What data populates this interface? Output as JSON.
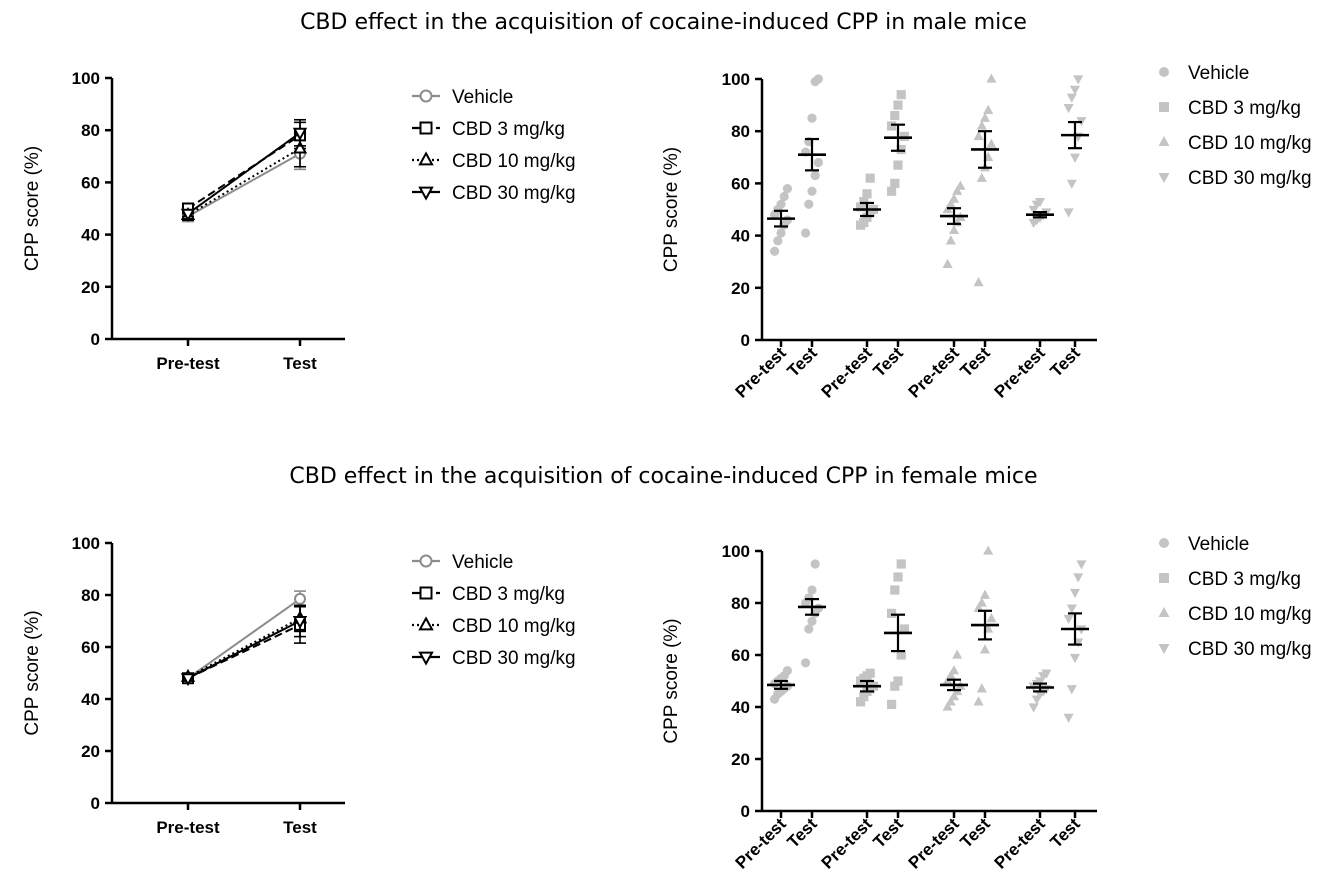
{
  "figure": {
    "male_title": "CBD effect in the acquisition of cocaine-induced CPP in male mice",
    "female_title": "CBD effect in the acquisition of cocaine-induced CPP in female mice"
  },
  "colors": {
    "Vehicle": "#8c8c8c",
    "CBD 3 mg/kg": "#000000",
    "CBD 10 mg/kg": "#000000",
    "CBD 30 mg/kg": "#000000",
    "scatter_points": "#c4c4c4"
  },
  "chart_data": [
    {
      "id": "male-line",
      "type": "line",
      "title": "",
      "xlabel": "",
      "ylabel": "CPP score (%)",
      "categories": [
        "Pre-test",
        "Test"
      ],
      "ylim": [
        0,
        100
      ],
      "yticks": [
        0,
        20,
        40,
        60,
        80,
        100
      ],
      "legend": "right",
      "series": [
        {
          "name": "Vehicle",
          "marker": "circle",
          "dash": "solid",
          "values": [
            47,
            71
          ],
          "err": [
            2,
            6
          ]
        },
        {
          "name": "CBD 3 mg/kg",
          "marker": "square",
          "dash": "dashed",
          "values": [
            50,
            78
          ],
          "err": [
            2,
            5
          ]
        },
        {
          "name": "CBD 10 mg/kg",
          "marker": "triangle-up",
          "dash": "dotted",
          "values": [
            47.5,
            73
          ],
          "err": [
            2,
            7
          ]
        },
        {
          "name": "CBD 30 mg/kg",
          "marker": "triangle-down",
          "dash": "solid",
          "values": [
            48,
            79
          ],
          "err": [
            1,
            5
          ]
        }
      ]
    },
    {
      "id": "male-scatter",
      "type": "scatter",
      "title": "",
      "xlabel": "",
      "ylabel": "CPP score (%)",
      "categories": [
        "Pre-test",
        "Test",
        "Pre-test",
        "Test",
        "Pre-test",
        "Test",
        "Pre-test",
        "Test"
      ],
      "ylim": [
        0,
        100
      ],
      "yticks": [
        0,
        20,
        40,
        60,
        80,
        100
      ],
      "legend": "right",
      "groups": [
        {
          "series": "Vehicle",
          "marker": "circle",
          "mean": 46.5,
          "sem": 3,
          "points": [
            34,
            38,
            41,
            44,
            46,
            48,
            50,
            52,
            55,
            58
          ]
        },
        {
          "series": "Vehicle",
          "marker": "circle",
          "mean": 71,
          "sem": 6,
          "points": [
            41,
            52,
            57,
            63,
            68,
            72,
            76,
            85,
            99,
            100
          ]
        },
        {
          "series": "CBD 3 mg/kg",
          "marker": "square",
          "mean": 50,
          "sem": 2.5,
          "points": [
            44,
            45,
            47,
            49,
            50,
            51,
            53,
            56,
            62
          ]
        },
        {
          "series": "CBD 3 mg/kg",
          "marker": "square",
          "mean": 77.5,
          "sem": 5,
          "points": [
            57,
            60,
            67,
            73,
            78,
            82,
            86,
            90,
            94
          ]
        },
        {
          "series": "CBD 10 mg/kg",
          "marker": "triangle-up",
          "mean": 47.5,
          "sem": 3,
          "points": [
            29,
            38,
            42,
            45,
            47,
            50,
            52,
            54,
            57,
            59
          ]
        },
        {
          "series": "CBD 10 mg/kg",
          "marker": "triangle-up",
          "mean": 73,
          "sem": 7,
          "points": [
            22,
            62,
            66,
            70,
            75,
            78,
            82,
            85,
            88,
            100
          ]
        },
        {
          "series": "CBD 30 mg/kg",
          "marker": "triangle-down",
          "mean": 48,
          "sem": 1,
          "points": [
            45,
            46,
            47,
            48,
            49,
            50,
            52,
            53
          ]
        },
        {
          "series": "CBD 30 mg/kg",
          "marker": "triangle-down",
          "mean": 78.5,
          "sem": 5,
          "points": [
            49,
            60,
            70,
            78,
            84,
            89,
            93,
            96,
            100
          ]
        }
      ]
    },
    {
      "id": "female-line",
      "type": "line",
      "title": "",
      "xlabel": "",
      "ylabel": "CPP score (%)",
      "categories": [
        "Pre-test",
        "Test"
      ],
      "ylim": [
        0,
        100
      ],
      "yticks": [
        0,
        20,
        40,
        60,
        80,
        100
      ],
      "legend": "right",
      "series": [
        {
          "name": "Vehicle",
          "marker": "circle",
          "dash": "solid",
          "values": [
            48,
            78.5
          ],
          "err": [
            1,
            3
          ]
        },
        {
          "name": "CBD 3 mg/kg",
          "marker": "square",
          "dash": "dashed",
          "values": [
            48,
            68.5
          ],
          "err": [
            1,
            7
          ]
        },
        {
          "name": "CBD 10 mg/kg",
          "marker": "triangle-up",
          "dash": "dotted",
          "values": [
            48.5,
            71
          ],
          "err": [
            1,
            5
          ]
        },
        {
          "name": "CBD 30 mg/kg",
          "marker": "triangle-down",
          "dash": "solid",
          "values": [
            48,
            70
          ],
          "err": [
            1,
            6
          ]
        }
      ]
    },
    {
      "id": "female-scatter",
      "type": "scatter",
      "title": "",
      "xlabel": "",
      "ylabel": "CPP score (%)",
      "categories": [
        "Pre-test",
        "Test",
        "Pre-test",
        "Test",
        "Pre-test",
        "Test",
        "Pre-test",
        "Test"
      ],
      "ylim": [
        0,
        100
      ],
      "yticks": [
        0,
        20,
        40,
        60,
        80,
        100
      ],
      "legend": "right",
      "groups": [
        {
          "series": "Vehicle",
          "marker": "circle",
          "mean": 48.5,
          "sem": 1.5,
          "points": [
            43,
            45,
            46,
            47,
            48,
            49,
            50,
            51,
            52,
            54
          ]
        },
        {
          "series": "Vehicle",
          "marker": "circle",
          "mean": 78.5,
          "sem": 3,
          "points": [
            57,
            70,
            73,
            76,
            78,
            80,
            82,
            85,
            95
          ]
        },
        {
          "series": "CBD 3 mg/kg",
          "marker": "square",
          "mean": 48,
          "sem": 2,
          "points": [
            42,
            44,
            46,
            47,
            48,
            50,
            51,
            52,
            53
          ]
        },
        {
          "series": "CBD 3 mg/kg",
          "marker": "square",
          "mean": 68.5,
          "sem": 7,
          "points": [
            41,
            48,
            50,
            60,
            70,
            76,
            85,
            90,
            95
          ]
        },
        {
          "series": "CBD 10 mg/kg",
          "marker": "triangle-up",
          "mean": 48.5,
          "sem": 2,
          "points": [
            40,
            42,
            44,
            46,
            48,
            50,
            52,
            54,
            60
          ]
        },
        {
          "series": "CBD 10 mg/kg",
          "marker": "triangle-up",
          "mean": 71.5,
          "sem": 5.5,
          "points": [
            42,
            47,
            62,
            70,
            74,
            78,
            80,
            83,
            100
          ]
        },
        {
          "series": "CBD 30 mg/kg",
          "marker": "triangle-down",
          "mean": 47.5,
          "sem": 1.5,
          "points": [
            40,
            43,
            45,
            46,
            47,
            48,
            49,
            50,
            52,
            53
          ]
        },
        {
          "series": "CBD 30 mg/kg",
          "marker": "triangle-down",
          "mean": 70,
          "sem": 6,
          "points": [
            36,
            47,
            59,
            65,
            70,
            74,
            78,
            84,
            90,
            95
          ]
        }
      ]
    }
  ]
}
